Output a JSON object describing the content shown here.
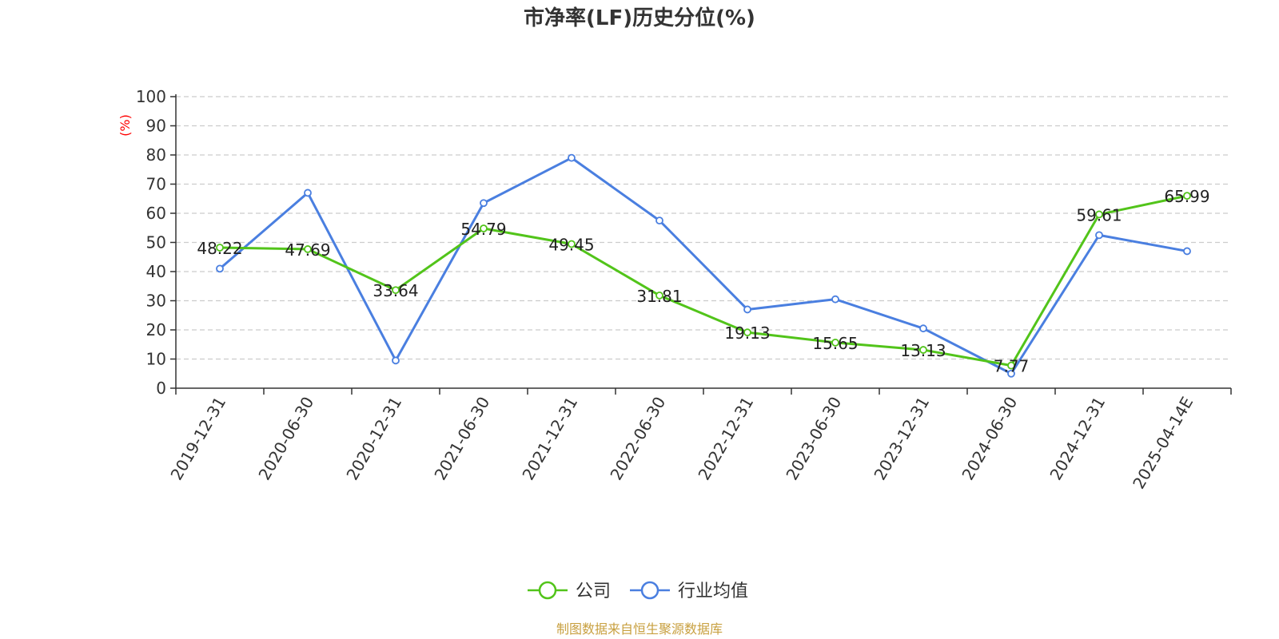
{
  "chart_data": {
    "type": "line",
    "title": "市净率(LF)历史分位(%)",
    "ylabel": "(%)",
    "ylim": [
      0,
      100
    ],
    "yticks": [
      0,
      10,
      20,
      30,
      40,
      50,
      60,
      70,
      80,
      90,
      100
    ],
    "grid": true,
    "legend_position": "bottom",
    "categories": [
      "2019-12-31",
      "2020-06-30",
      "2020-12-31",
      "2021-06-30",
      "2021-12-31",
      "2022-06-30",
      "2022-12-31",
      "2023-06-30",
      "2023-12-31",
      "2024-06-30",
      "2024-12-31",
      "2025-04-14E"
    ],
    "series": [
      {
        "name": "公司",
        "color": "#52c41a",
        "show_labels": true,
        "labels": [
          "48.22",
          "47.69",
          "33.64",
          "54.79",
          "49.45",
          "31.81",
          "19.13",
          "15.65",
          "13.13",
          "7.77",
          "59.61",
          "65.99"
        ],
        "values": [
          48.22,
          47.69,
          33.64,
          54.79,
          49.45,
          31.81,
          19.13,
          15.65,
          13.13,
          7.77,
          59.61,
          65.99
        ]
      },
      {
        "name": "行业均值",
        "color": "#4a7fe0",
        "show_labels": false,
        "values": [
          41.0,
          67.0,
          9.5,
          63.5,
          79.0,
          57.5,
          27.0,
          30.5,
          20.5,
          5.0,
          52.5,
          47.0
        ]
      }
    ],
    "unit_color": "#ff0000"
  },
  "source": {
    "text": "制图数据来自恒生聚源数据库",
    "color": "#c8a040"
  }
}
